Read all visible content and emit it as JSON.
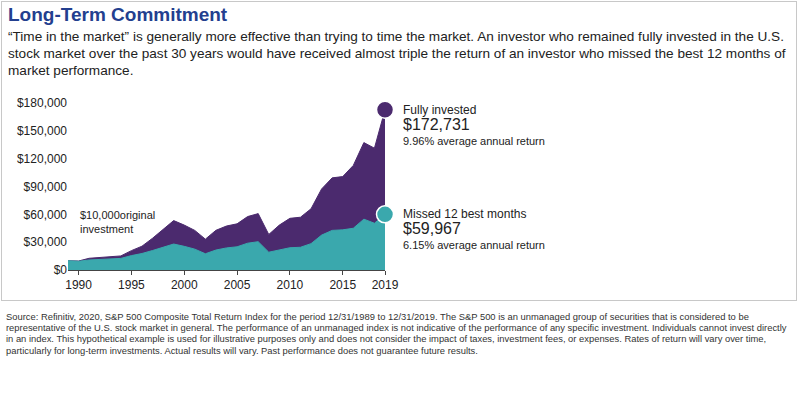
{
  "title": "Long-Term Commitment",
  "subtitle": "“Time in the market” is generally more effective than trying to time the market. An investor who remained fully invested in the U.S. stock market over the past 30 years would have received almost triple the return of an investor who missed the best 12 months of market performance.",
  "footnote": "Source: Refinitiv, 2020, S&P 500 Composite Total Return Index for the period 12/31/1989 to 12/31/2019. The S&P 500 is an unmanaged group of securities that is considered to be representative of the U.S. stock market in general. The performance of an unmanaged index is not indicative of the performance of any specific investment. Individuals cannot invest directly in an index. This hypothetical example is used for illustrative purposes only and does not consider the impact of taxes, investment fees, or expenses. Rates of return will vary over time, particularly for long-term investments. Actual results will vary. Past performance does not guarantee future results.",
  "chart_data": {
    "type": "area",
    "x": [
      1989,
      1990,
      1991,
      1992,
      1993,
      1994,
      1995,
      1996,
      1997,
      1998,
      1999,
      2000,
      2001,
      2002,
      2003,
      2004,
      2005,
      2006,
      2007,
      2008,
      2009,
      2010,
      2011,
      2012,
      2013,
      2014,
      2015,
      2016,
      2017,
      2018,
      2019
    ],
    "xlim": [
      1989,
      2019
    ],
    "xticks": [
      1990,
      1995,
      2000,
      2005,
      2010,
      2015,
      2019
    ],
    "ylim": [
      0,
      180000
    ],
    "yticks": [
      {
        "value": 0,
        "label": "$0"
      },
      {
        "value": 30000,
        "label": "$30,000"
      },
      {
        "value": 60000,
        "label": "$60,000"
      },
      {
        "value": 90000,
        "label": "$90,000"
      },
      {
        "value": 120000,
        "label": "$120,000"
      },
      {
        "value": 150000,
        "label": "$150,000"
      },
      {
        "value": 180000,
        "label": "$180,000"
      }
    ],
    "grid": false,
    "stacked": false,
    "series": [
      {
        "name": "Fully invested",
        "color": "#4b2a6e",
        "values": [
          10000,
          9690,
          12640,
          13600,
          14970,
          15170,
          20870,
          25660,
          34220,
          44000,
          53260,
          48410,
          42660,
          33230,
          42770,
          47420,
          49750,
          57600,
          60770,
          38280,
          48410,
          55700,
          56880,
          65980,
          87350,
          99310,
          100680,
          112720,
          137320,
          131300,
          172731
        ],
        "value_label": "$172,731",
        "note": "9.96% average annual return"
      },
      {
        "name": "Missed 12 best months",
        "color": "#3aa8ad",
        "values": [
          10000,
          9400,
          10800,
          11600,
          12400,
          12500,
          15500,
          17800,
          21000,
          24500,
          28000,
          25500,
          22500,
          17500,
          21500,
          23800,
          25000,
          28900,
          30500,
          19200,
          21500,
          24000,
          24500,
          28400,
          37600,
          42700,
          43300,
          45000,
          54800,
          50400,
          59967
        ],
        "value_label": "$59,967",
        "note": "6.15% average annual return"
      }
    ],
    "annotations": [
      {
        "text_lines": [
          "$10,000original",
          "investment"
        ]
      }
    ]
  }
}
